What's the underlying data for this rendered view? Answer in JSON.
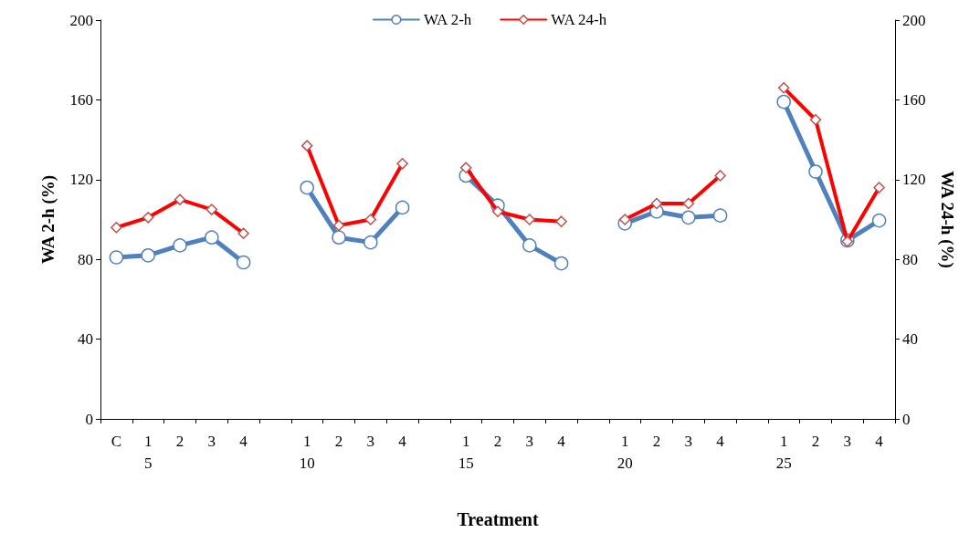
{
  "chart_data": {
    "type": "line",
    "xlabel": "Treatment",
    "ylabel": "WA 2-h (%)",
    "y2label": "WA 24-h (%)",
    "categories": [
      "C",
      "1\n5",
      "2",
      "3",
      "4",
      null,
      "1\n10",
      "2",
      "3",
      "4",
      null,
      "1\n15",
      "2",
      "3",
      "4",
      null,
      "1\n20",
      "2",
      "3",
      "4",
      null,
      "1\n25",
      "2",
      "3",
      "4"
    ],
    "series": [
      {
        "name": "WA 2-h",
        "color": "#4f81bd",
        "marker": "circle",
        "values": [
          81,
          82,
          87,
          91,
          78.5,
          null,
          116,
          91,
          88.5,
          106,
          null,
          122,
          107,
          87,
          78,
          null,
          98,
          104,
          101,
          102,
          null,
          159,
          124,
          89.5,
          99.5
        ]
      },
      {
        "name": "WA 24-h",
        "color": "#ff0000",
        "marker": "diamond",
        "axis": "y2",
        "values": [
          96,
          101,
          110,
          105,
          93,
          null,
          137,
          97,
          100,
          128,
          null,
          126,
          104,
          100,
          99,
          null,
          100,
          108,
          108,
          122,
          null,
          166,
          150,
          89,
          116
        ]
      }
    ],
    "ylim": [
      0,
      200
    ],
    "yticks": [
      0,
      40,
      80,
      120,
      160,
      200
    ],
    "y2lim": [
      0,
      200
    ],
    "y2ticks": [
      0,
      40,
      80,
      120,
      160,
      200
    ],
    "grid": false,
    "legend": "top"
  }
}
